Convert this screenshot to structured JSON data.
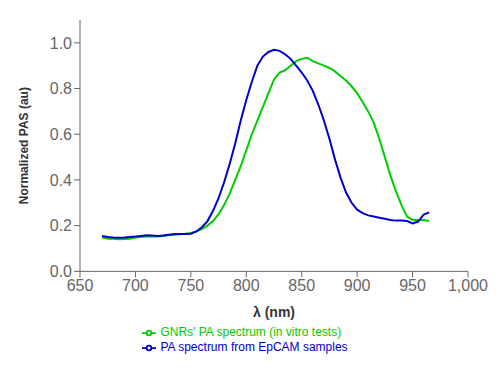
{
  "chart_data": {
    "type": "line",
    "xlabel": "λ (nm)",
    "ylabel": "Normalized PAS (au)",
    "xlim": [
      650,
      1000
    ],
    "ylim": [
      0.0,
      1.1
    ],
    "xticks": [
      650,
      700,
      750,
      800,
      850,
      900,
      950,
      {
        "value": 1000,
        "label": "1,000"
      }
    ],
    "yticks": [
      {
        "value": 0,
        "label": "0.0"
      },
      0.2,
      0.4,
      0.6,
      0.8,
      {
        "value": 1,
        "label": "1.0"
      }
    ],
    "grid": false,
    "legend": "bottom",
    "x": [
      670,
      675,
      680,
      685,
      690,
      695,
      700,
      705,
      710,
      715,
      720,
      725,
      730,
      735,
      740,
      745,
      750,
      755,
      760,
      765,
      770,
      775,
      780,
      785,
      790,
      795,
      800,
      805,
      810,
      815,
      820,
      825,
      830,
      835,
      840,
      845,
      850,
      855,
      860,
      865,
      870,
      875,
      880,
      885,
      890,
      895,
      900,
      905,
      910,
      915,
      920,
      925,
      930,
      935,
      940,
      945,
      950,
      955,
      960,
      965
    ],
    "series": [
      {
        "name": "GNRs' PA spectrum (in vitro tests)",
        "color": "#00cc00",
        "values": [
          0.148,
          0.143,
          0.143,
          0.14,
          0.142,
          0.143,
          0.148,
          0.15,
          0.153,
          0.152,
          0.152,
          0.155,
          0.158,
          0.16,
          0.162,
          0.165,
          0.168,
          0.175,
          0.185,
          0.2,
          0.22,
          0.25,
          0.29,
          0.34,
          0.4,
          0.46,
          0.53,
          0.6,
          0.66,
          0.72,
          0.78,
          0.84,
          0.87,
          0.88,
          0.9,
          0.92,
          0.93,
          0.935,
          0.92,
          0.91,
          0.9,
          0.89,
          0.875,
          0.855,
          0.835,
          0.81,
          0.78,
          0.74,
          0.7,
          0.65,
          0.58,
          0.5,
          0.42,
          0.35,
          0.29,
          0.24,
          0.225,
          0.225,
          0.225,
          0.22
        ]
      },
      {
        "name": "PA spectrum from EpCAM samples",
        "color": "#0000cc",
        "values": [
          0.155,
          0.15,
          0.148,
          0.147,
          0.148,
          0.15,
          0.152,
          0.155,
          0.158,
          0.157,
          0.155,
          0.157,
          0.16,
          0.163,
          0.163,
          0.163,
          0.165,
          0.175,
          0.193,
          0.22,
          0.265,
          0.32,
          0.39,
          0.47,
          0.56,
          0.66,
          0.75,
          0.83,
          0.9,
          0.94,
          0.96,
          0.97,
          0.965,
          0.95,
          0.93,
          0.9,
          0.87,
          0.835,
          0.79,
          0.73,
          0.66,
          0.58,
          0.49,
          0.41,
          0.345,
          0.3,
          0.27,
          0.255,
          0.245,
          0.24,
          0.235,
          0.23,
          0.225,
          0.222,
          0.222,
          0.22,
          0.21,
          0.218,
          0.248,
          0.258
        ]
      }
    ]
  }
}
